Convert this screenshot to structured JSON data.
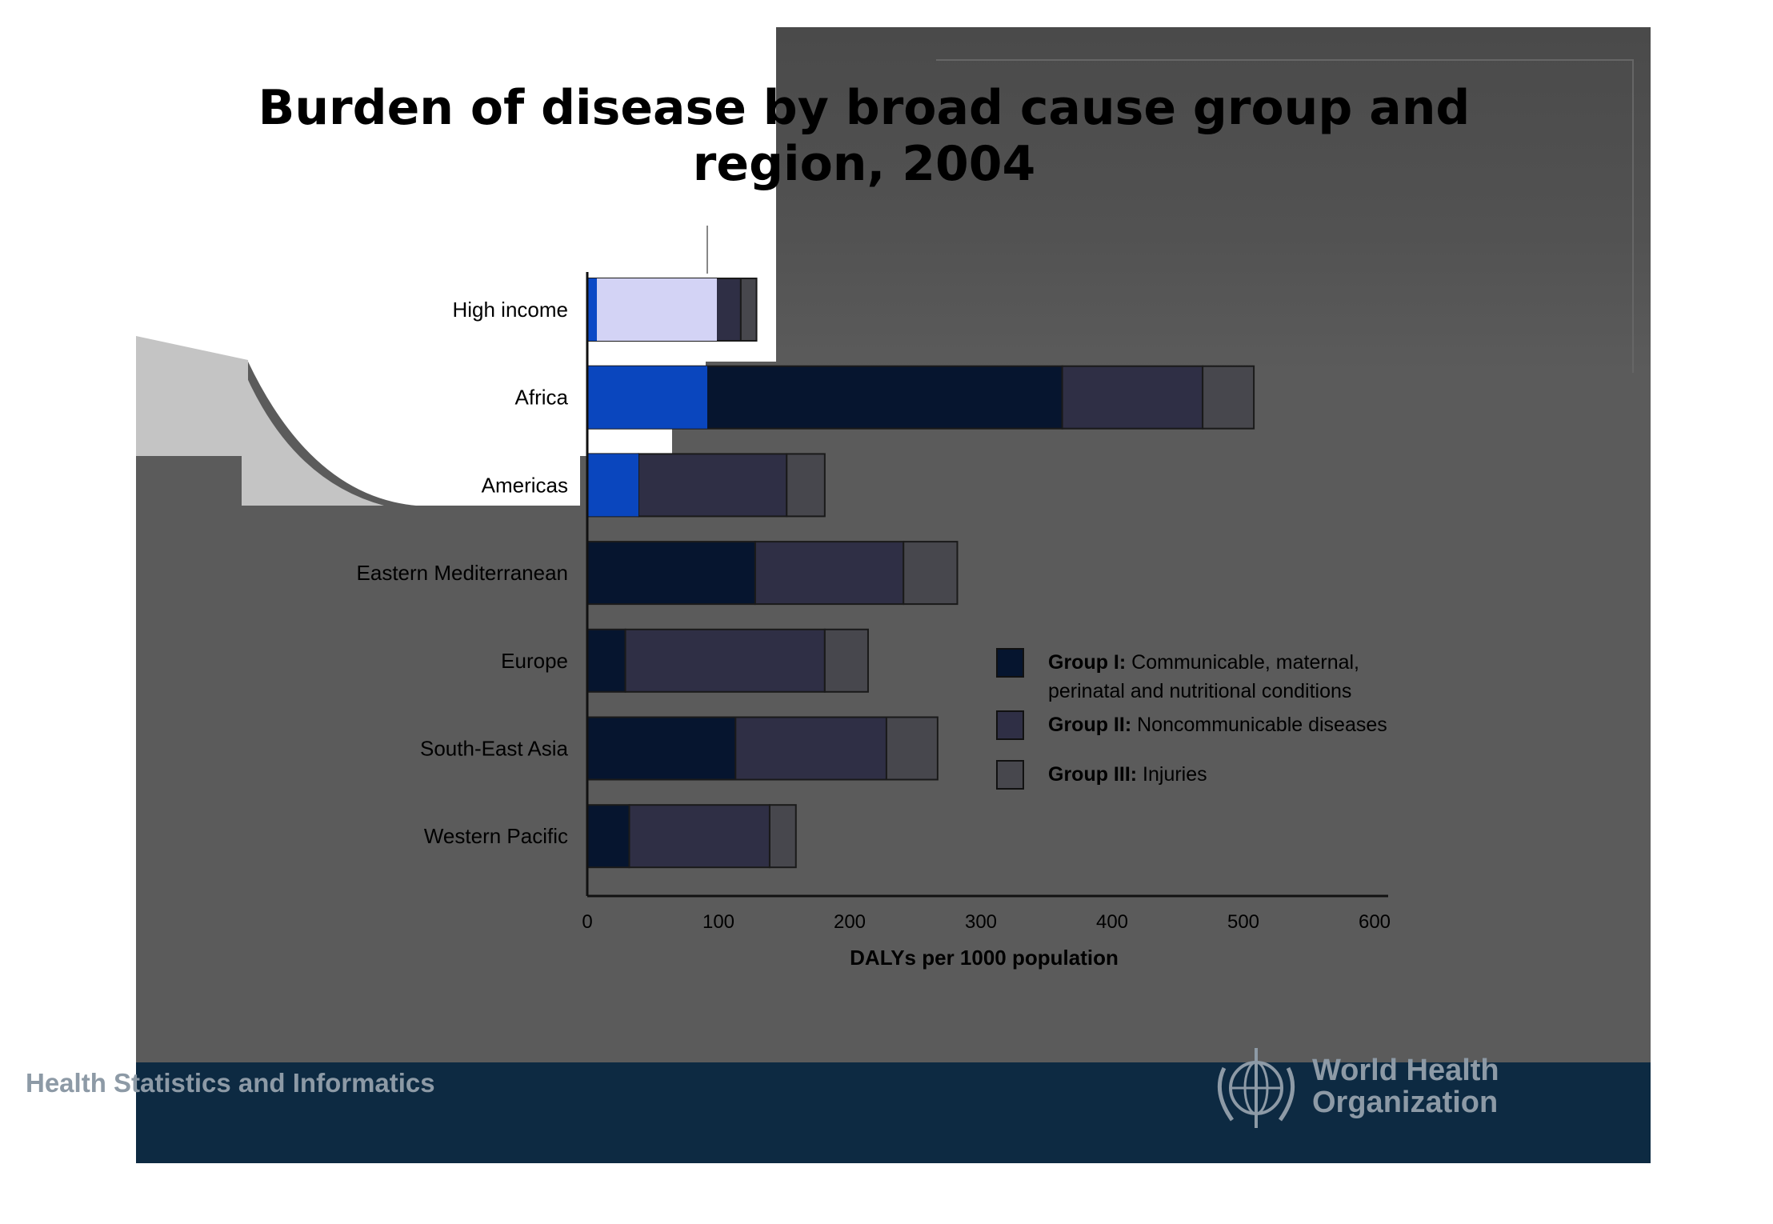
{
  "title_line1": "Burden of disease by broad cause group and",
  "title_line2": "region, 2004",
  "footer": {
    "left_text": "Health Statistics and Informatics",
    "org_line1": "World Health",
    "org_line2": "Organization"
  },
  "colors": {
    "group1": "#06152f",
    "group2": "#2f2f45",
    "group3": "#47474d",
    "footer_bg": "#0d2a42"
  },
  "chart_data": {
    "type": "bar",
    "orientation": "horizontal",
    "stacked": true,
    "categories": [
      "High income",
      "Africa",
      "Americas",
      "Eastern Mediterranean",
      "Europe",
      "South-East Asia",
      "Western Pacific"
    ],
    "series": [
      {
        "name": "Group I: Communicable, maternal, perinatal and nutritional conditions",
        "values": [
          8,
          362,
          39,
          128,
          29,
          113,
          32
        ]
      },
      {
        "name": "Group II: Noncommunicable diseases",
        "values": [
          109,
          107,
          113,
          113,
          152,
          115,
          107
        ]
      },
      {
        "name": "Group III: Injuries",
        "values": [
          12,
          39,
          29,
          41,
          33,
          39,
          20
        ]
      }
    ],
    "xlabel": "DALYs per 1000 population",
    "xlim": [
      0,
      600
    ],
    "xticks": [
      0,
      100,
      200,
      300,
      400,
      500,
      600
    ],
    "legend": [
      {
        "bold": "Group I:",
        "text_line1": "Communicable, maternal,",
        "text_line2": "perinatal and nutritional conditions"
      },
      {
        "bold": "Group II:",
        "text_line1": "Noncommunicable diseases",
        "text_line2": ""
      },
      {
        "bold": "Group III:",
        "text_line1": "Injuries",
        "text_line2": ""
      }
    ],
    "legend_position": "right"
  }
}
